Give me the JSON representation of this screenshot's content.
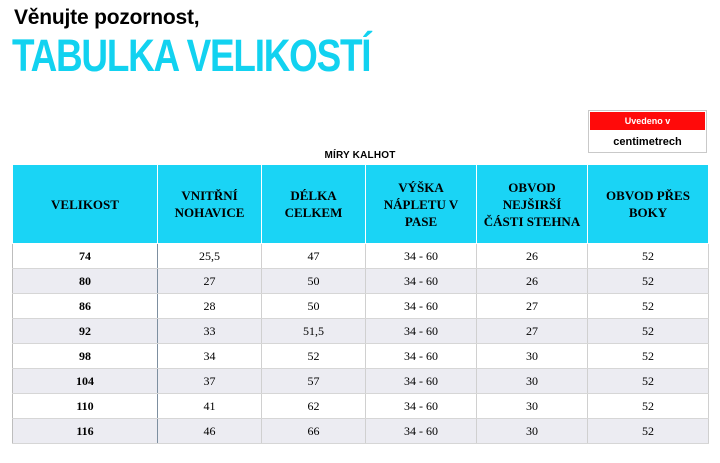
{
  "header": {
    "subtitle": "Věnujte pozornost,",
    "title": "TABULKA VELIKOSTÍ"
  },
  "units": {
    "label": "Uvedeno v",
    "value": "centimetrech"
  },
  "table": {
    "caption": "MÍRY KALHOT",
    "columns": [
      "VELIKOST",
      "VNITŘNÍ NOHAVICE",
      "DÉLKA CELKEM",
      "VÝŠKA NÁPLETU V PASE",
      "OBVOD NEJŠIRŠÍ ČÁSTI STEHNA",
      "OBVOD PŘES BOKY"
    ],
    "rows": [
      [
        "74",
        "25,5",
        "47",
        "34 - 60",
        "26",
        "52"
      ],
      [
        "80",
        "27",
        "50",
        "34 - 60",
        "26",
        "52"
      ],
      [
        "86",
        "28",
        "50",
        "34 - 60",
        "27",
        "52"
      ],
      [
        "92",
        "33",
        "51,5",
        "34 - 60",
        "27",
        "52"
      ],
      [
        "98",
        "34",
        "52",
        "34 - 60",
        "30",
        "52"
      ],
      [
        "104",
        "37",
        "57",
        "34 - 60",
        "30",
        "52"
      ],
      [
        "110",
        "41",
        "62",
        "34 - 60",
        "30",
        "52"
      ],
      [
        "116",
        "46",
        "66",
        "34 - 60",
        "30",
        "52"
      ]
    ]
  },
  "colors": {
    "title": "#12d2f0",
    "header_bg": "#1ad4f5",
    "units_badge": "#ff0a0a",
    "stripe": "#ececf2"
  }
}
